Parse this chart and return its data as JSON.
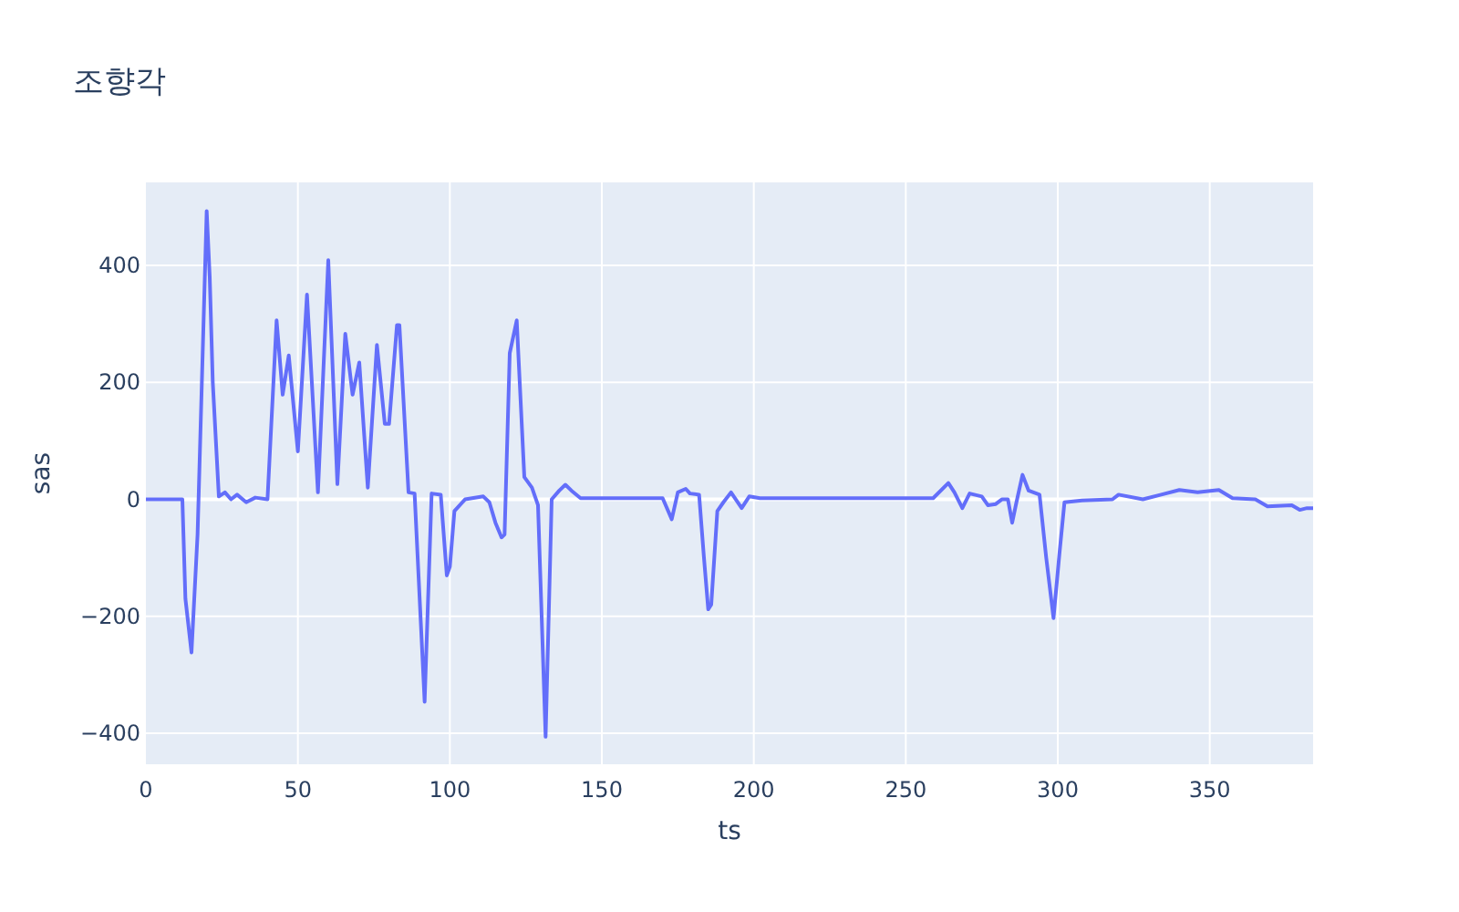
{
  "chart_data": {
    "type": "line",
    "title": "조향각",
    "xlabel": "ts",
    "ylabel": "sas",
    "xlim": [
      0,
      384
    ],
    "ylim": [
      -453,
      542
    ],
    "xticks": [
      0,
      50,
      100,
      150,
      200,
      250,
      300,
      350
    ],
    "yticks": [
      {
        "value": -400,
        "label": "−400"
      },
      {
        "value": -200,
        "label": "−200"
      },
      0,
      200,
      400
    ],
    "grid": true,
    "series": [
      {
        "color": "#636efa",
        "x": [
          0,
          12,
          13,
          15,
          17,
          20,
          21,
          22,
          24,
          26,
          28,
          30,
          33,
          36,
          40,
          43,
          45,
          47,
          50,
          53,
          56.6,
          60,
          63,
          65.6,
          68,
          70.2,
          73,
          76,
          78.6,
          80,
          82.6,
          83.4,
          86.4,
          88.4,
          91.7,
          94,
          97,
          99,
          100,
          101.5,
          105,
          111,
          113,
          115,
          117,
          118,
          119.7,
          122,
          124.5,
          127,
          129,
          131.5,
          133.5,
          136,
          138,
          140,
          143,
          170,
          173,
          175,
          177.6,
          179,
          182,
          183.6,
          185,
          186,
          188,
          190,
          192.5,
          196,
          198.5,
          202,
          259,
          264,
          266,
          268.6,
          271,
          275,
          277,
          279.6,
          281.6,
          283.6,
          285,
          286.4,
          288.4,
          290.4,
          294,
          296.2,
          298.6,
          300.6,
          302.2,
          308,
          318,
          320,
          328,
          340,
          346,
          353,
          357.5,
          365,
          369,
          377,
          379.6,
          382,
          384
        ],
        "values": [
          0,
          0,
          -170,
          -262,
          -60,
          493,
          380,
          200,
          5,
          12,
          0,
          8,
          -5,
          3,
          0,
          306,
          179,
          246,
          82,
          350,
          12,
          409,
          26,
          283,
          179,
          234,
          20,
          264,
          129,
          129,
          298,
          298,
          12,
          10,
          -346,
          10,
          8,
          -130,
          -115,
          -20,
          0,
          5,
          -5,
          -40,
          -65,
          -60,
          250,
          306,
          38,
          20,
          -10,
          -406,
          0,
          15,
          25,
          15,
          2,
          2,
          -34,
          12,
          18,
          10,
          8,
          -100,
          -188,
          -180,
          -20,
          -5,
          12,
          -15,
          5,
          2,
          2,
          28,
          12,
          -15,
          10,
          5,
          -10,
          -8,
          0,
          0,
          -40,
          -5,
          42,
          15,
          8,
          -100,
          -203,
          -90,
          -5,
          -2,
          0,
          8,
          0,
          16,
          12,
          16,
          2,
          0,
          -12,
          -10,
          -18,
          -15,
          -15
        ]
      }
    ]
  }
}
